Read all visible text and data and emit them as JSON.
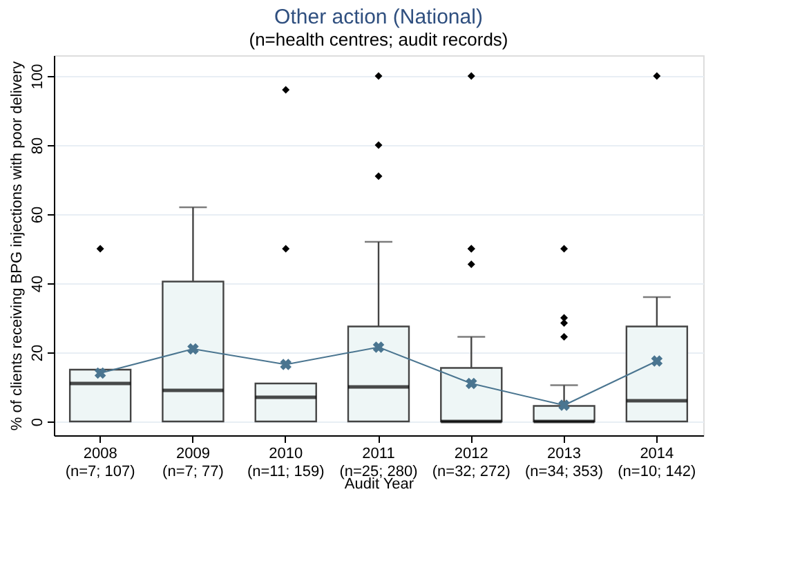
{
  "chart_data": {
    "type": "box",
    "title": "Other action (National)",
    "subtitle": "(n=health centres; audit records)",
    "xlabel": "Audit Year",
    "ylabel": "% of clients receiving BPG injections with poor delivery",
    "categories": [
      "2008\n(n=7; 107)",
      "2009\n(n=7; 77)",
      "2010\n(n=11; 159)",
      "2011\n(n=25; 280)",
      "2012\n(n=32; 272)",
      "2013\n(n=34; 353)",
      "2014\n(n=10; 142)"
    ],
    "ylim": [
      -4,
      106
    ],
    "yticks": [
      0,
      20,
      40,
      60,
      80,
      100
    ],
    "grid": "y",
    "series": [
      {
        "color": "#eef6f6",
        "boxes": [
          {
            "low": 0,
            "q1": 0,
            "median": 11,
            "q3": 15,
            "high": 15,
            "outliers": [
              50
            ]
          },
          {
            "low": 0,
            "q1": 0,
            "median": 9,
            "q3": 40.5,
            "high": 62
          },
          {
            "low": 0,
            "q1": 0,
            "median": 7,
            "q3": 11,
            "high": 11,
            "outliers": [
              50,
              96
            ]
          },
          {
            "low": 0,
            "q1": 0,
            "median": 10,
            "q3": 27.5,
            "high": 52,
            "outliers": [
              71,
              80,
              100
            ]
          },
          {
            "low": 0,
            "q1": 0,
            "median": 0,
            "q3": 15.5,
            "high": 24.5,
            "outliers": [
              45.5,
              50,
              50,
              100
            ]
          },
          {
            "low": 0,
            "q1": 0,
            "median": 0,
            "q3": 4.5,
            "high": 10.5,
            "outliers": [
              24.5,
              28.5,
              30,
              50
            ]
          },
          {
            "low": 0,
            "q1": 0,
            "median": 6,
            "q3": 27.5,
            "high": 36,
            "outliers": [
              100
            ]
          }
        ]
      },
      {
        "type": "line",
        "color": "#4a7590",
        "marker": "cross",
        "values": [
          14,
          21,
          16.5,
          21.5,
          11,
          4.7,
          17.5
        ]
      }
    ]
  }
}
